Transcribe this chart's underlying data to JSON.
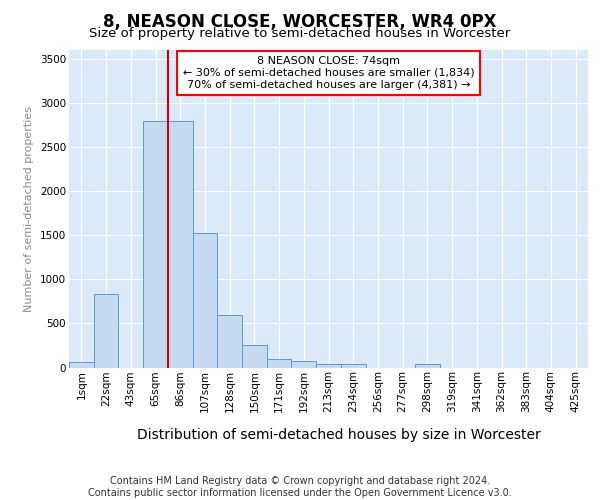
{
  "title": "8, NEASON CLOSE, WORCESTER, WR4 0PX",
  "subtitle": "Size of property relative to semi-detached houses in Worcester",
  "xlabel": "Distribution of semi-detached houses by size in Worcester",
  "ylabel": "Number of semi-detached properties",
  "footer_line1": "Contains HM Land Registry data © Crown copyright and database right 2024.",
  "footer_line2": "Contains public sector information licensed under the Open Government Licence v3.0.",
  "bar_labels": [
    "1sqm",
    "22sqm",
    "43sqm",
    "65sqm",
    "86sqm",
    "107sqm",
    "128sqm",
    "150sqm",
    "171sqm",
    "192sqm",
    "213sqm",
    "234sqm",
    "256sqm",
    "277sqm",
    "298sqm",
    "319sqm",
    "341sqm",
    "362sqm",
    "383sqm",
    "404sqm",
    "425sqm"
  ],
  "bar_values": [
    60,
    830,
    0,
    2800,
    2800,
    1530,
    590,
    255,
    100,
    70,
    40,
    40,
    0,
    0,
    35,
    0,
    0,
    0,
    0,
    0,
    0
  ],
  "bar_color": "#c5d9f0",
  "bar_edge_color": "#5b9bd5",
  "property_line_x": 3.5,
  "property_sqm": 74,
  "percent_smaller": 30,
  "count_smaller": "1,834",
  "percent_larger": 70,
  "count_larger": "4,381",
  "property_line_color": "#cc0000",
  "background_color": "#dce9f8",
  "grid_color": "#ffffff",
  "ylim": [
    0,
    3600
  ],
  "yticks": [
    0,
    500,
    1000,
    1500,
    2000,
    2500,
    3000,
    3500
  ],
  "title_fontsize": 12,
  "subtitle_fontsize": 9.5,
  "ylabel_fontsize": 8,
  "xlabel_fontsize": 10,
  "tick_fontsize": 7.5,
  "footer_fontsize": 7
}
